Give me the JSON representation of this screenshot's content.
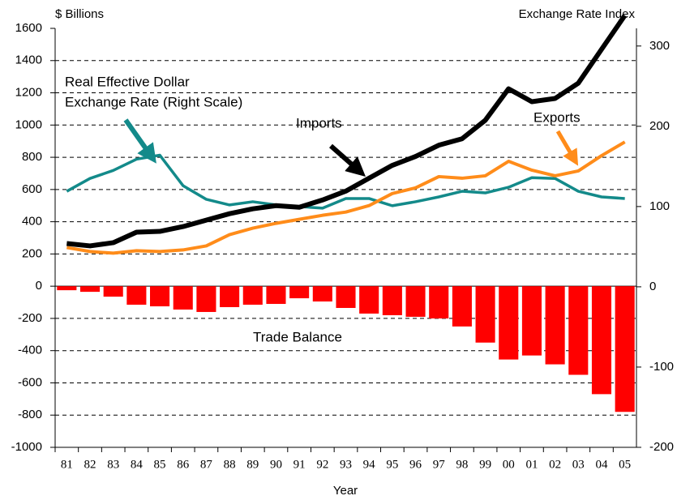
{
  "chart_data": {
    "type": "combo",
    "left_axis_label": "$ Billions",
    "right_axis_label": "Exchange Rate Index",
    "xlabel": "Year",
    "annotations": {
      "exchange_rate": [
        "Real Effective Dollar",
        "Exchange Rate (Right Scale)"
      ],
      "imports": "Imports",
      "exports": "Exports",
      "trade_balance": "Trade Balance"
    },
    "categories": [
      "81",
      "82",
      "83",
      "84",
      "85",
      "86",
      "87",
      "88",
      "89",
      "90",
      "91",
      "92",
      "93",
      "94",
      "95",
      "96",
      "97",
      "98",
      "99",
      "00",
      "01",
      "02",
      "03",
      "04",
      "05"
    ],
    "series": [
      {
        "name": "Trade Balance",
        "type": "bar",
        "color": "#ff0000",
        "values": [
          -25,
          -35,
          -65,
          -115,
          -125,
          -145,
          -160,
          -130,
          -115,
          -110,
          -75,
          -95,
          -135,
          -170,
          -180,
          -190,
          -200,
          -250,
          -350,
          -455,
          -430,
          -485,
          -550,
          -670,
          -780
        ]
      },
      {
        "name": "Real Effective Dollar Exchange Rate",
        "type": "line",
        "axis": "y2",
        "color": "#138a8a",
        "values": [
          119,
          135,
          145,
          159,
          164,
          126,
          109,
          102,
          106,
          102,
          100,
          98,
          110,
          110,
          101,
          106,
          112,
          119,
          117,
          124,
          136,
          135,
          119,
          112,
          110
        ]
      },
      {
        "name": "Exports",
        "type": "line",
        "color": "#ff8c1a",
        "values": [
          240,
          215,
          205,
          220,
          215,
          225,
          250,
          320,
          360,
          390,
          415,
          440,
          460,
          500,
          575,
          610,
          680,
          670,
          685,
          775,
          720,
          685,
          715,
          810,
          895
        ]
      },
      {
        "name": "Imports",
        "type": "line",
        "color": "#000000",
        "values": [
          265,
          250,
          270,
          335,
          340,
          370,
          410,
          450,
          480,
          500,
          490,
          535,
          590,
          670,
          750,
          805,
          875,
          915,
          1030,
          1225,
          1145,
          1165,
          1260,
          1470,
          1680
        ]
      }
    ],
    "ylim": [
      -1000,
      1600
    ],
    "yticks": [
      -1000,
      -800,
      -600,
      -400,
      -200,
      0,
      200,
      400,
      600,
      800,
      1000,
      1200,
      1400,
      1600
    ],
    "y2lim": [
      -200,
      322
    ],
    "y2ticks": [
      -200,
      -100,
      0,
      100,
      200,
      300
    ],
    "grid": true
  }
}
